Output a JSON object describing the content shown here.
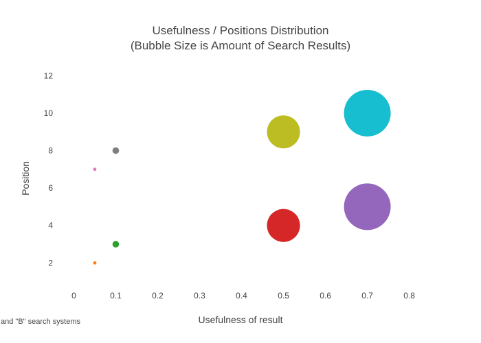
{
  "chart_data": {
    "type": "scatter",
    "title_lines": [
      "Usefulness / Positions Distribution",
      "(Bubble Size is Amount of Search Results)"
    ],
    "xlabel": "Usefulness of result",
    "ylabel": "Position",
    "xlim": [
      -0.045,
      0.84
    ],
    "ylim": [
      0.8,
      12.6
    ],
    "x_ticks": [
      "0",
      "0.1",
      "0.2",
      "0.3",
      "0.4",
      "0.5",
      "0.6",
      "0.7",
      "0.8"
    ],
    "x_tick_values": [
      0,
      0.1,
      0.2,
      0.3,
      0.4,
      0.5,
      0.6,
      0.7,
      0.8
    ],
    "y_ticks": [
      "2",
      "4",
      "6",
      "8",
      "10",
      "12"
    ],
    "y_tick_values": [
      2,
      4,
      6,
      8,
      10,
      12
    ],
    "grid": false,
    "footnote": "and \"B\" search systems",
    "points": [
      {
        "x": 0.05,
        "y": 2,
        "size": 1,
        "color": "#ff7f0e"
      },
      {
        "x": 0.1,
        "y": 3,
        "size": 4,
        "color": "#2ca02c"
      },
      {
        "x": 0.5,
        "y": 4,
        "size": 100,
        "color": "#d62728"
      },
      {
        "x": 0.7,
        "y": 5,
        "size": 200,
        "color": "#9467bd"
      },
      {
        "x": 0.05,
        "y": 7,
        "size": 1,
        "color": "#e377c2"
      },
      {
        "x": 0.1,
        "y": 8,
        "size": 4,
        "color": "#7f7f7f"
      },
      {
        "x": 0.5,
        "y": 9,
        "size": 100,
        "color": "#bcbd22"
      },
      {
        "x": 0.7,
        "y": 10,
        "size": 200,
        "color": "#17becf"
      }
    ]
  }
}
